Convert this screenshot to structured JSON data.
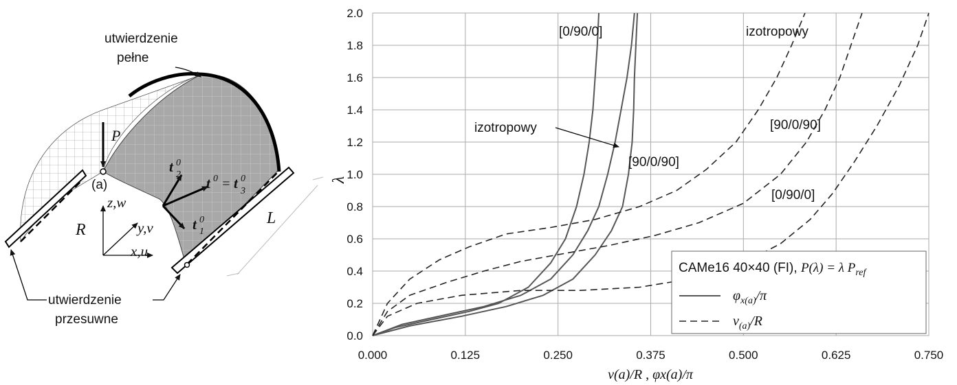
{
  "diagram": {
    "support_full_line1": "utwierdzenie",
    "support_full_line2": "pełne",
    "support_sliding_line1": "utwierdzenie",
    "support_sliding_line2": "przesuwne",
    "load_label": "P",
    "point_label": "(a)",
    "axis_z": "z,w",
    "axis_y": "y,v",
    "axis_x": "x,u",
    "radius_label": "R",
    "length_label": "L"
  },
  "legend": {
    "title_prefix": "CAMe16 40×40 (FI), ",
    "title_formula": "P(λ) = λ P",
    "title_sub": "ref",
    "solid_label_main": "φ",
    "solid_label_sub": "x(a)",
    "solid_label_tail": "/π",
    "dashed_label_main": "v",
    "dashed_label_sub": "(a)",
    "dashed_label_tail": "/R"
  },
  "chart_data": {
    "type": "line",
    "title": "",
    "xlabel": "v(a)/R ,  φx(a)/π",
    "ylabel": "λ",
    "xlim": [
      0,
      0.75
    ],
    "ylim": [
      0,
      2.0
    ],
    "x_ticks": [
      "0.000",
      "0.125",
      "0.250",
      "0.375",
      "0.500",
      "0.625",
      "0.750"
    ],
    "y_ticks": [
      "0.0",
      "0.2",
      "0.4",
      "0.6",
      "0.8",
      "1.0",
      "1.2",
      "1.4",
      "1.6",
      "1.8",
      "2.0"
    ],
    "grid": true,
    "legend_position": "bottom-right",
    "series": [
      {
        "name": "[0/90/0]",
        "style": "solid",
        "x": [
          0,
          0.03,
          0.08,
          0.13,
          0.17,
          0.21,
          0.24,
          0.26,
          0.275,
          0.285,
          0.292,
          0.297,
          0.3,
          0.303,
          0.305
        ],
        "y": [
          0,
          0.05,
          0.1,
          0.15,
          0.2,
          0.3,
          0.45,
          0.6,
          0.8,
          1.0,
          1.2,
          1.4,
          1.6,
          1.8,
          2.0
        ]
      },
      {
        "name": "izotropowy",
        "style": "solid",
        "x": [
          0,
          0.04,
          0.1,
          0.15,
          0.2,
          0.24,
          0.27,
          0.29,
          0.305,
          0.317,
          0.327,
          0.335,
          0.343,
          0.349,
          0.353
        ],
        "y": [
          0,
          0.07,
          0.13,
          0.18,
          0.25,
          0.35,
          0.5,
          0.65,
          0.8,
          1.0,
          1.2,
          1.4,
          1.6,
          1.8,
          2.0
        ]
      },
      {
        "name": "[90/0/90]",
        "style": "solid",
        "x": [
          0,
          0.05,
          0.12,
          0.18,
          0.23,
          0.27,
          0.3,
          0.322,
          0.337,
          0.345,
          0.35,
          0.352,
          0.353,
          0.355,
          0.357
        ],
        "y": [
          0,
          0.06,
          0.12,
          0.18,
          0.25,
          0.35,
          0.5,
          0.65,
          0.8,
          1.0,
          1.2,
          1.4,
          1.6,
          1.8,
          2.0
        ]
      },
      {
        "name": "izotropowy",
        "style": "dashed",
        "x": [
          0,
          0.02,
          0.05,
          0.09,
          0.13,
          0.18,
          0.24,
          0.3,
          0.36,
          0.41,
          0.45,
          0.49,
          0.52,
          0.545,
          0.565,
          0.583
        ],
        "y": [
          0,
          0.2,
          0.35,
          0.47,
          0.55,
          0.63,
          0.67,
          0.72,
          0.8,
          0.9,
          1.03,
          1.2,
          1.4,
          1.6,
          1.8,
          2.0
        ]
      },
      {
        "name": "[90/0/90]",
        "style": "dashed",
        "x": [
          0,
          0.02,
          0.05,
          0.1,
          0.15,
          0.2,
          0.26,
          0.32,
          0.38,
          0.44,
          0.5,
          0.55,
          0.585,
          0.61,
          0.63,
          0.645,
          0.66
        ],
        "y": [
          0,
          0.15,
          0.25,
          0.33,
          0.4,
          0.46,
          0.51,
          0.56,
          0.62,
          0.7,
          0.82,
          1.0,
          1.2,
          1.4,
          1.6,
          1.8,
          2.0
        ]
      },
      {
        "name": "[0/90/0]",
        "style": "dashed",
        "x": [
          0,
          0.02,
          0.06,
          0.12,
          0.2,
          0.28,
          0.36,
          0.44,
          0.5,
          0.55,
          0.59,
          0.62,
          0.65,
          0.68,
          0.71,
          0.735,
          0.75
        ],
        "y": [
          0,
          0.12,
          0.2,
          0.25,
          0.28,
          0.28,
          0.3,
          0.36,
          0.45,
          0.57,
          0.72,
          0.88,
          1.08,
          1.3,
          1.55,
          1.8,
          2.0
        ]
      }
    ],
    "annotations": [
      {
        "id": "ann-090-solid",
        "text": "[0/90/0]"
      },
      {
        "id": "ann-iso-solid",
        "text": "izotropowy"
      },
      {
        "id": "ann-90090-solid",
        "text": "[90/0/90]"
      },
      {
        "id": "ann-iso-dashed",
        "text": "izotropowy"
      },
      {
        "id": "ann-90090-dashed",
        "text": "[90/0/90]"
      },
      {
        "id": "ann-090-dashed",
        "text": "[0/90/0]"
      }
    ]
  }
}
